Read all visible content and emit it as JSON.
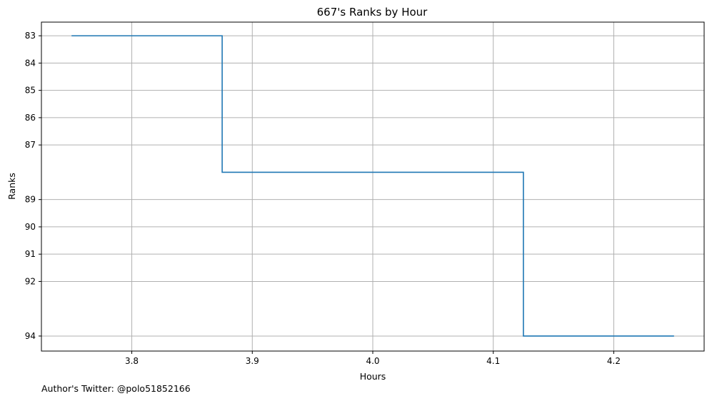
{
  "chart_data": {
    "type": "line",
    "drawstyle": "steps",
    "title": "667's Ranks by Hour",
    "xlabel": "Hours",
    "ylabel": "Ranks",
    "x": [
      3.75,
      3.875,
      4.125,
      4.25
    ],
    "y": [
      83,
      88,
      94,
      94
    ],
    "xlim": [
      3.725,
      4.275
    ],
    "ylim": [
      94.55,
      82.5
    ],
    "y_inverted": true,
    "xticks": [
      "3.8",
      "3.9",
      "4.0",
      "4.1",
      "4.2"
    ],
    "yticks": [
      "83",
      "84",
      "85",
      "86",
      "87",
      "89",
      "90",
      "91",
      "92",
      "94"
    ],
    "grid": true,
    "line_color": "#1f77b4"
  },
  "footer": {
    "note": "Author's Twitter: @polo51852166"
  }
}
